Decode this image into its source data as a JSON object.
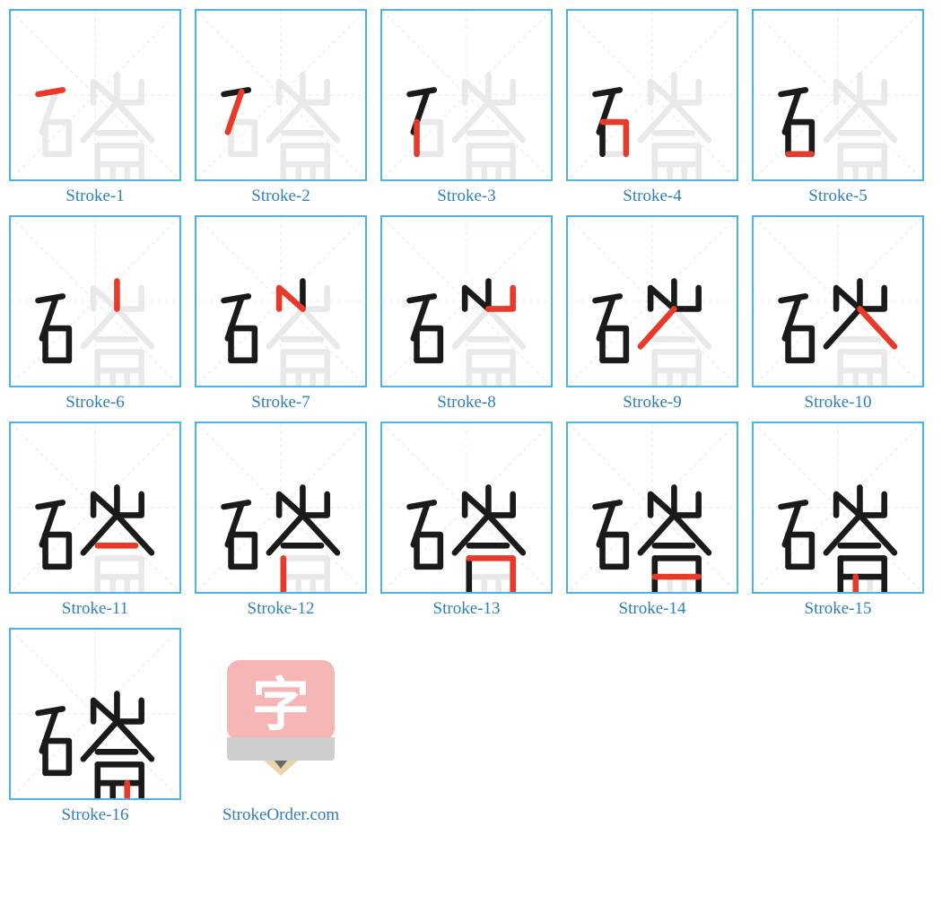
{
  "grid": {
    "cols": 5,
    "tile_size": 192,
    "border_color": "#4db2e6",
    "border_width": 2,
    "guide_color": "#d8ecf7",
    "caption_color": "#2f7fb8",
    "caption_fontsize": 19
  },
  "char": {
    "ghost_color": "#e9e9e9",
    "done_color": "#1a1a1a",
    "current_color": "#e83a29",
    "stroke_width": 14,
    "strokes": [
      "M 35 178 L 93 168",
      "M 77 172 L 44 268",
      "M 52 244 L 52 320",
      "M 52 244 L 108 244 L 108 320",
      "M 52 320 L 108 320",
      "M 222 132 L 222 198",
      "M 166 198 L 166 148 L 222 198",
      "M 280 148 L 280 198 L 222 198",
      "M 222 198 L 142 287",
      "M 222 198 L 304 287",
      "M 176 270 L 266 270",
      "M 176 300 L 176 400",
      "M 176 300 L 280 300 L 280 400",
      "M 176 344 L 280 344",
      "M 212 344 L 212 400",
      "M 246 344 L 246 400"
    ]
  },
  "logo": {
    "bg_color": "#f7b6b6",
    "char": "字",
    "char_color": "#ffffff",
    "pencil_body": "#cfcfcf",
    "pencil_wood": "#e8d6a8",
    "pencil_lead": "#6a6a6a",
    "caption": "StrokeOrder.com"
  },
  "cells_label_prefix": "Stroke-"
}
